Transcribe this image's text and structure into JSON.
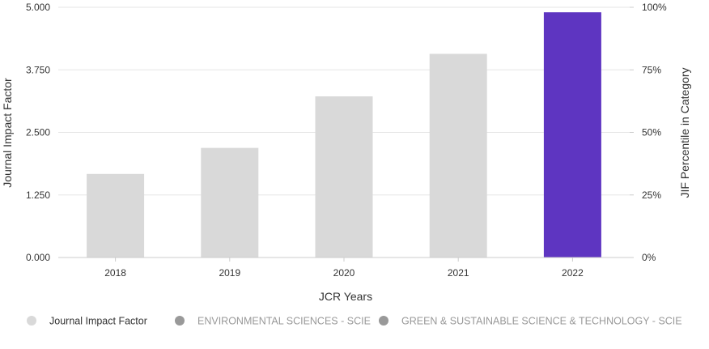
{
  "chart_data": {
    "type": "bar",
    "categories": [
      "2018",
      "2019",
      "2020",
      "2021",
      "2022"
    ],
    "series": [
      {
        "name": "Journal Impact Factor",
        "values": [
          1.67,
          2.19,
          3.22,
          4.07,
          4.9
        ],
        "colors": [
          "#d9d9d9",
          "#d9d9d9",
          "#d9d9d9",
          "#d9d9d9",
          "#5e35c1"
        ]
      }
    ],
    "xlabel": "JCR Years",
    "ylabel": "Journal Impact Factor",
    "y2label": "JIF Percentile in Category",
    "ylim": [
      0,
      5
    ],
    "yticks": [
      "0.000",
      "1.250",
      "2.500",
      "3.750",
      "5.000"
    ],
    "y2lim": [
      0,
      100
    ],
    "y2ticks": [
      "0%",
      "25%",
      "50%",
      "75%",
      "100%"
    ],
    "grid": true,
    "legend_position": "bottom-left",
    "legend": [
      {
        "label": "Journal Impact Factor",
        "marker_color": "#d9d9d9",
        "text_color": "#333333"
      },
      {
        "label": "ENVIRONMENTAL SCIENCES - SCIE",
        "marker_color": "#999999",
        "text_color": "#999999"
      },
      {
        "label": "GREEN & SUSTAINABLE SCIENCE & TECHNOLOGY - SCIE",
        "marker_color": "#999999",
        "text_color": "#999999"
      }
    ]
  }
}
